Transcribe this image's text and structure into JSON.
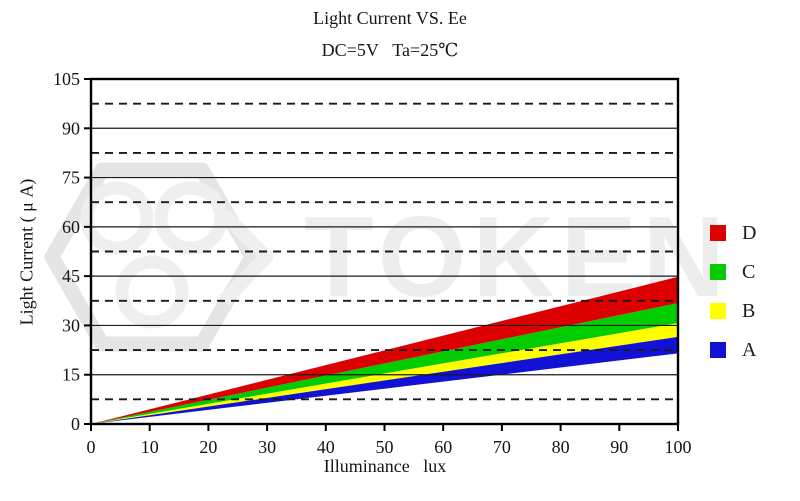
{
  "title": "Light Current VS. Ee",
  "subtitle": "DC=5V   Ta=25℃",
  "watermark": {
    "text": "TOKEN",
    "text_color": "#ededed",
    "logo_color": "#e5e5e5",
    "inner_color": "#efefef"
  },
  "colors": {
    "frame": "#000000",
    "grid_solid": "#1a1a1a",
    "grid_dashed": "#1a1a1a",
    "tick": "#000000",
    "background": "#ffffff"
  },
  "chart_data": {
    "type": "area",
    "title": "Light Current VS. Ee",
    "subtitle": "DC=5V   Ta=25℃",
    "xlabel": "Illuminance   lux",
    "ylabel": "Light Current ( μ A)",
    "xlim": [
      0,
      100
    ],
    "ylim": [
      0,
      105
    ],
    "x_ticks": [
      0,
      10,
      20,
      30,
      40,
      50,
      60,
      70,
      80,
      90,
      100
    ],
    "y_ticks": [
      0,
      15,
      30,
      45,
      60,
      75,
      90,
      105
    ],
    "grid": {
      "solid_y": [
        15,
        30,
        45,
        60,
        75,
        90
      ],
      "dashed_y": [
        7.5,
        22.5,
        37.5,
        52.5,
        67.5,
        82.5,
        97.5
      ]
    },
    "legend": {
      "position": "right",
      "entries": [
        "D",
        "C",
        "B",
        "A"
      ]
    },
    "series": [
      {
        "name": "D",
        "color": "#dd0000",
        "x": [
          0,
          100
        ],
        "lower": [
          0,
          36.8
        ],
        "upper": [
          0,
          44.8
        ]
      },
      {
        "name": "C",
        "color": "#00cc00",
        "x": [
          0,
          100
        ],
        "lower": [
          0,
          30.7
        ],
        "upper": [
          0,
          36.8
        ]
      },
      {
        "name": "B",
        "color": "#ffff00",
        "x": [
          0,
          100
        ],
        "lower": [
          0,
          26.5
        ],
        "upper": [
          0,
          30.7
        ]
      },
      {
        "name": "A",
        "color": "#1212d6",
        "x": [
          0,
          100
        ],
        "lower": [
          0,
          21.5
        ],
        "upper": [
          0,
          26.5
        ]
      }
    ]
  }
}
